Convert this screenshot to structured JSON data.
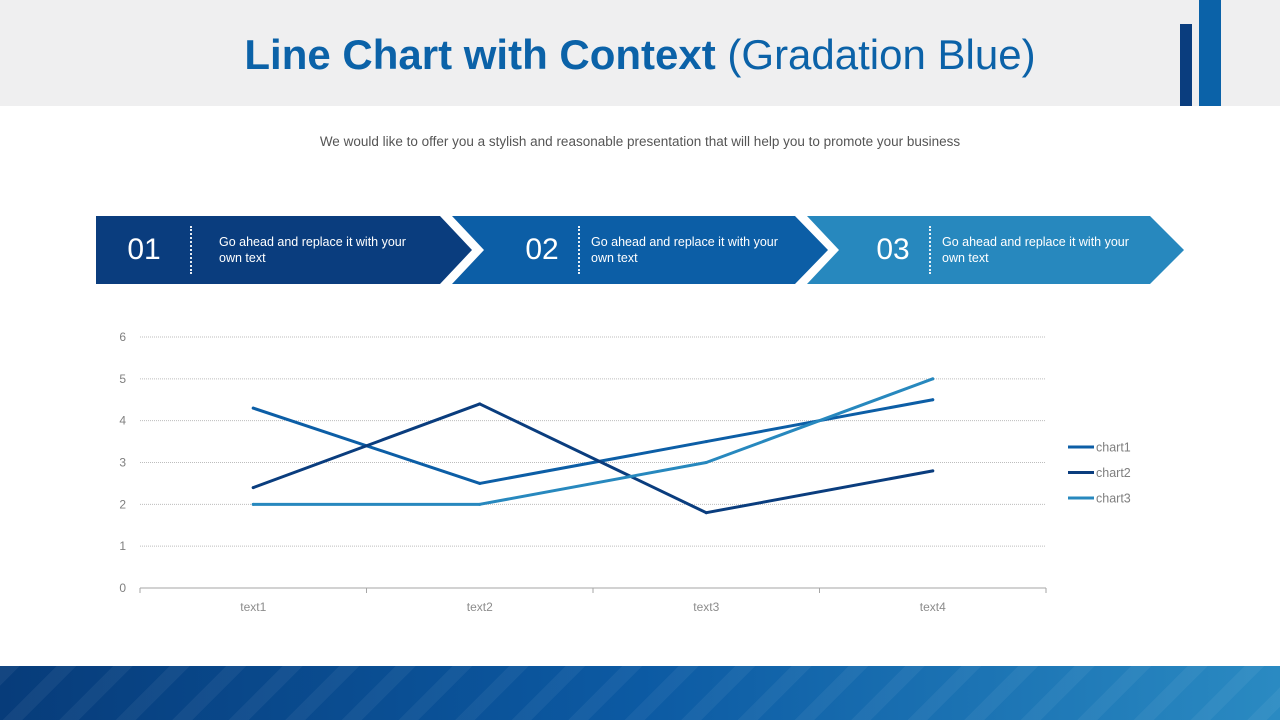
{
  "header": {
    "title_bold": "Line Chart with Context",
    "title_rest": " (Gradation Blue)"
  },
  "subtitle": "We would like to offer you a stylish and reasonable presentation that will help you to promote your business",
  "steps": [
    {
      "number": "01",
      "text": "Go ahead and replace it with your own text",
      "color": "#0a3d7e"
    },
    {
      "number": "02",
      "text": "Go ahead and replace it with your own text",
      "color": "#0c5ea6"
    },
    {
      "number": "03",
      "text": "Go ahead and replace it with your own text",
      "color": "#2788be"
    }
  ],
  "colors": {
    "accent": "#0b62a8",
    "dark_blue": "#0a3d7e",
    "mid_blue": "#0c5ea6",
    "light_blue": "#2788be"
  },
  "chart_data": {
    "type": "line",
    "categories": [
      "text1",
      "text2",
      "text3",
      "text4"
    ],
    "series": [
      {
        "name": "chart1",
        "values": [
          4.3,
          2.5,
          3.5,
          4.5
        ],
        "color": "#0c5ea6"
      },
      {
        "name": "chart2",
        "values": [
          2.4,
          4.4,
          1.8,
          2.8
        ],
        "color": "#0a3d7e"
      },
      {
        "name": "chart3",
        "values": [
          2.0,
          2.0,
          3.0,
          5.0
        ],
        "color": "#2788be"
      }
    ],
    "ylim": [
      0,
      6
    ],
    "yticks": [
      "0",
      "1",
      "2",
      "3",
      "4",
      "5",
      "6"
    ],
    "grid": true,
    "legend_position": "right"
  }
}
